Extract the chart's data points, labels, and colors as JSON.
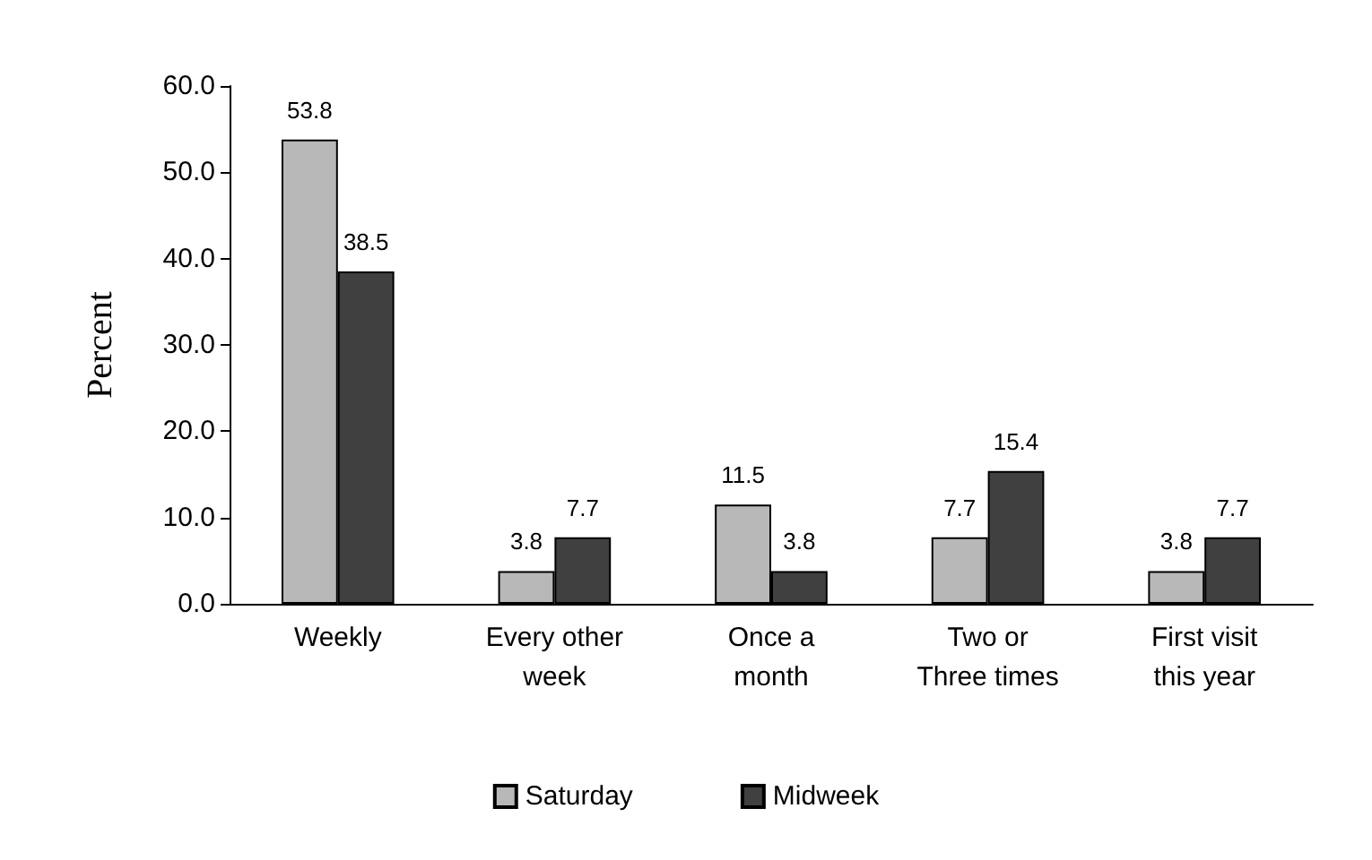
{
  "chart_data": {
    "type": "bar",
    "ylabel": "Percent",
    "categories": [
      "Weekly",
      "Every other\nweek",
      "Once a\nmonth",
      "Two or\nThree times",
      "First visit\nthis year"
    ],
    "series": [
      {
        "name": "Saturday",
        "color": "#b8b8b8",
        "values": [
          53.8,
          3.8,
          11.5,
          7.7,
          3.8
        ]
      },
      {
        "name": "Midweek",
        "color": "#404040",
        "values": [
          38.5,
          7.7,
          3.8,
          15.4,
          7.7
        ]
      }
    ],
    "ylim": [
      0,
      60
    ],
    "yticks": [
      {
        "value": 0,
        "label": "0.0"
      },
      {
        "value": 10,
        "label": "10.0"
      },
      {
        "value": 20,
        "label": "20.0"
      },
      {
        "value": 30,
        "label": "30.0"
      },
      {
        "value": 40,
        "label": "40.0"
      },
      {
        "value": 50,
        "label": "50.0"
      },
      {
        "value": 60,
        "label": "60.0"
      }
    ],
    "data_labels": true,
    "legend": "bottom",
    "grid": false
  }
}
